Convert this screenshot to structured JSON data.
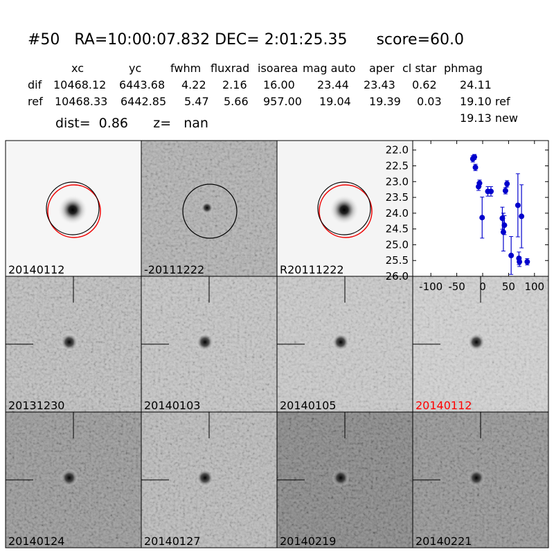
{
  "header": {
    "title": "#50   RA=10:00:07.832 DEC= 2:01:25.35      score=60.0",
    "columns": [
      "xc",
      "yc",
      "fwhm",
      "fluxrad",
      "isoarea",
      "mag auto",
      "aper",
      "cl star",
      "phmag"
    ],
    "rows": [
      [
        "dif",
        "10468.12",
        "6443.68",
        "4.22",
        "2.16",
        "16.00",
        "23.44",
        "23.43",
        "0.62",
        "24.11"
      ],
      [
        "ref",
        "10468.33",
        "6442.85",
        "5.47",
        "5.66",
        "957.00",
        "19.04",
        "19.39",
        "0.03",
        "19.10 ref"
      ]
    ],
    "extra": "19.13 new",
    "dist_line": "dist=  0.86      z=   nan"
  },
  "panels": [
    {
      "label": "20140112"
    },
    {
      "label": "-20111222"
    },
    {
      "label": "R20111222"
    },
    {
      "label": "20131230"
    },
    {
      "label": "20140103"
    },
    {
      "label": "20140105"
    },
    {
      "label": "20140112",
      "label_color": "#ff0000"
    },
    {
      "label": "20140124"
    },
    {
      "label": "20140127"
    },
    {
      "label": "20140219"
    },
    {
      "label": "20140221"
    }
  ],
  "chart_data": {
    "type": "scatter",
    "color": "#0000cc",
    "x": [
      -19,
      -16,
      -14,
      -8,
      -6,
      -1,
      10,
      16,
      38,
      40,
      42,
      44,
      47,
      55,
      68,
      70,
      71,
      75,
      86
    ],
    "values": [
      22.28,
      22.22,
      22.55,
      23.16,
      23.05,
      24.14,
      23.31,
      23.31,
      24.16,
      24.6,
      24.38,
      23.29,
      23.07,
      25.34,
      23.75,
      25.43,
      25.54,
      24.1,
      25.54
    ],
    "errors": [
      0.1,
      0.08,
      0.1,
      0.12,
      0.1,
      0.65,
      0.15,
      0.15,
      0.35,
      0.6,
      0.3,
      0.1,
      0.1,
      0.6,
      1.0,
      0.2,
      0.15,
      1.0,
      0.1
    ],
    "xlim": [
      -135,
      127
    ],
    "ylim": [
      21.7,
      26
    ],
    "y_inverted": true,
    "xticks": [
      -100,
      -50,
      0,
      50,
      100
    ],
    "yticks": [
      {
        "value": 22,
        "label": "22.0"
      },
      {
        "value": 22.5,
        "label": "22.5"
      },
      {
        "value": 23,
        "label": "23.0"
      },
      {
        "value": 23.5,
        "label": "23.5"
      },
      {
        "value": 24,
        "label": "24.0"
      },
      {
        "value": 24.5,
        "label": "24.5"
      },
      {
        "value": 25,
        "label": "25.0"
      },
      {
        "value": 25.5,
        "label": "25.5"
      },
      {
        "value": 26,
        "label": "26.0"
      }
    ]
  }
}
